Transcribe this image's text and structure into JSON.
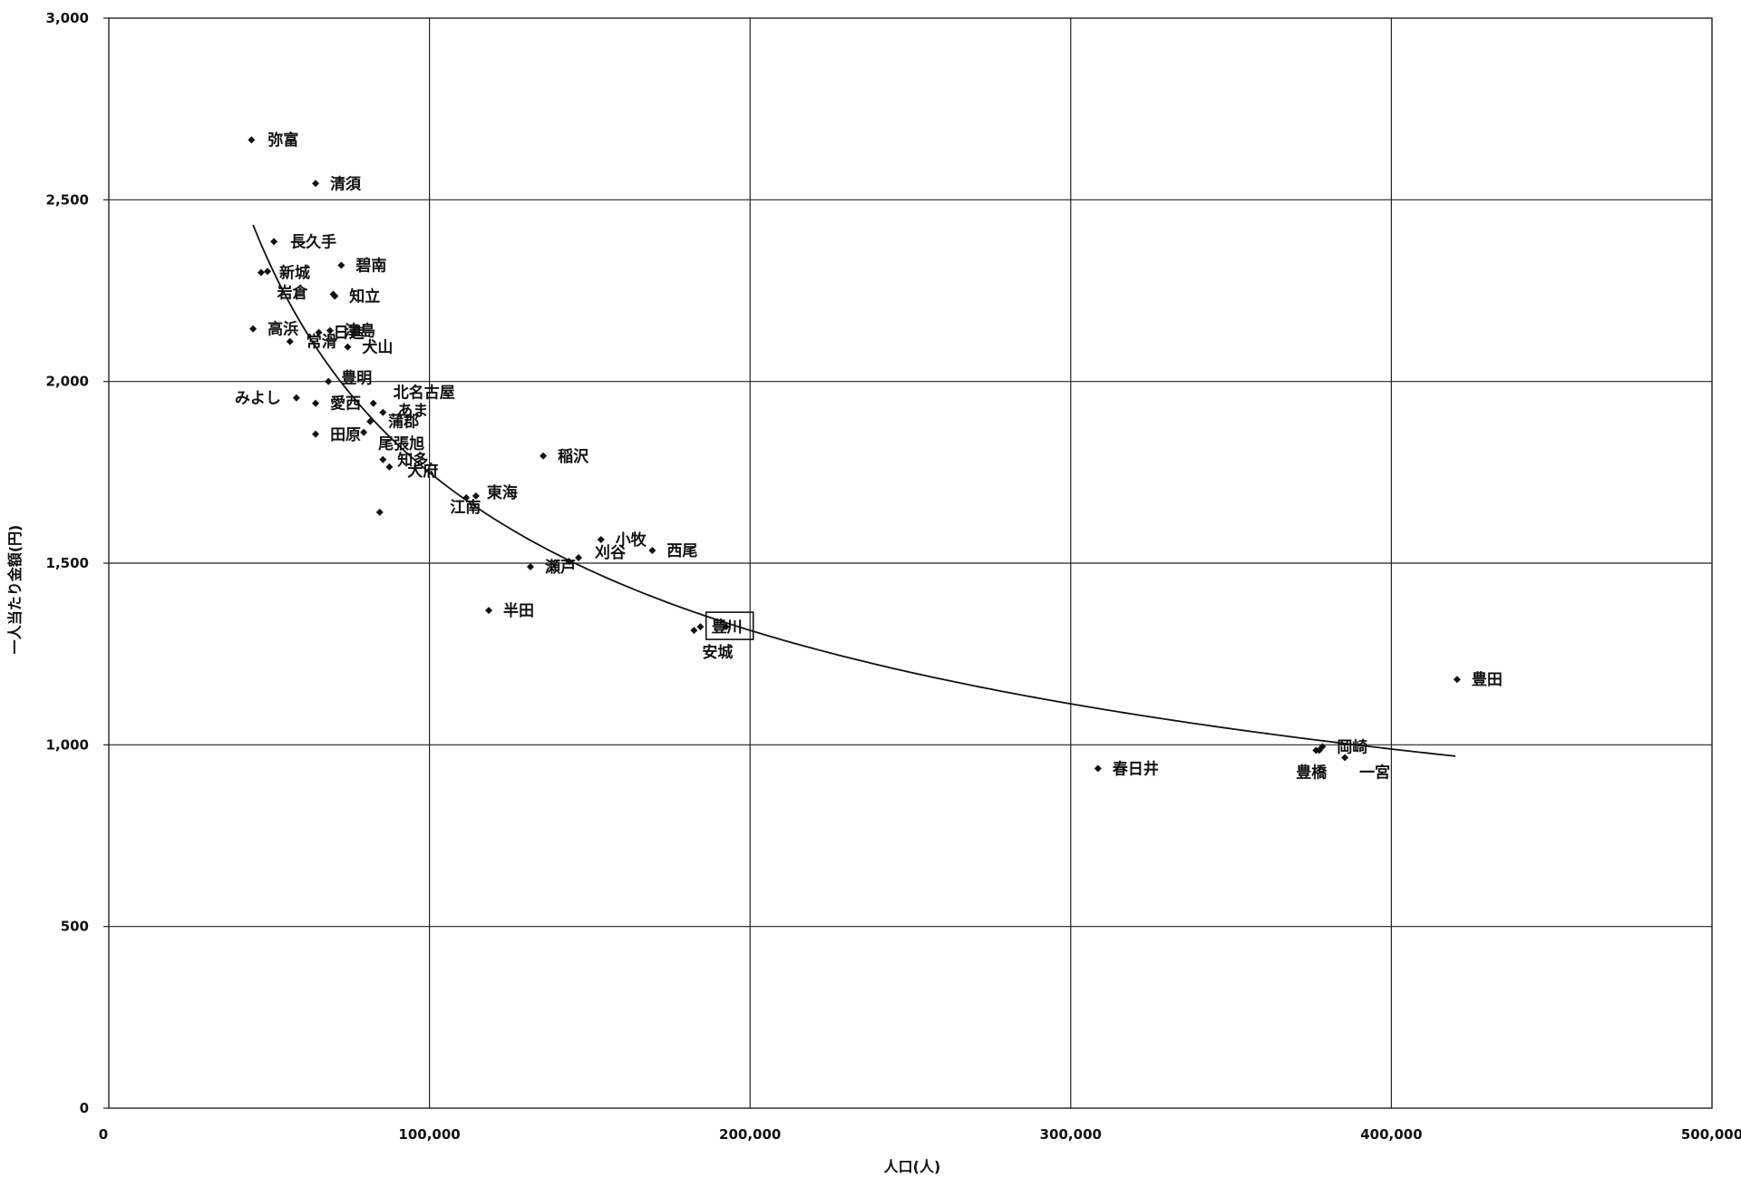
{
  "chart_data": {
    "type": "scatter",
    "title": "",
    "xlabel": "人口(人)",
    "ylabel": "一人当たり金額(円)",
    "xlim": [
      0,
      500000
    ],
    "ylim": [
      0,
      3000
    ],
    "x_ticks": [
      0,
      100000,
      200000,
      300000,
      400000,
      500000
    ],
    "x_tick_labels": [
      "0",
      "100,000",
      "200,000",
      "300,000",
      "400,000",
      "500,000"
    ],
    "y_ticks": [
      0,
      500,
      1000,
      1500,
      2000,
      2500,
      3000
    ],
    "y_tick_labels": [
      "0",
      "500",
      "1,000",
      "1,500",
      "2,000",
      "2,500",
      "3,000"
    ],
    "grid": true,
    "legend": "none",
    "trendline": {
      "type": "power",
      "x_range": [
        45000,
        420000
      ]
    },
    "highlighted": "豊川",
    "points": [
      {
        "label": "弥富",
        "x": 44500,
        "y": 2665,
        "dx": 18,
        "dy": 6
      },
      {
        "label": "清須",
        "x": 64500,
        "y": 2545,
        "dx": 16,
        "dy": 6
      },
      {
        "label": "長久手",
        "x": 51500,
        "y": 2385,
        "dx": 18,
        "dy": 6
      },
      {
        "label": "新城",
        "x": 47500,
        "y": 2300,
        "dx": 20,
        "dy": 6
      },
      {
        "label": "",
        "x": 49500,
        "y": 2303,
        "dx": 0,
        "dy": 0
      },
      {
        "label": "碧南",
        "x": 72500,
        "y": 2320,
        "dx": 16,
        "dy": 6
      },
      {
        "label": "岩倉",
        "x": 70000,
        "y": 2240,
        "dx": -62,
        "dy": 4
      },
      {
        "label": "知立",
        "x": 70500,
        "y": 2235,
        "dx": 16,
        "dy": 6
      },
      {
        "label": "高浜",
        "x": 45000,
        "y": 2145,
        "dx": 16,
        "dy": 6
      },
      {
        "label": "日進",
        "x": 65500,
        "y": 2135,
        "dx": 16,
        "dy": 6
      },
      {
        "label": "津島",
        "x": 69000,
        "y": 2140,
        "dx": 16,
        "dy": 6
      },
      {
        "label": "常滑",
        "x": 56500,
        "y": 2110,
        "dx": 18,
        "dy": 6
      },
      {
        "label": "犬山",
        "x": 74500,
        "y": 2095,
        "dx": 16,
        "dy": 6
      },
      {
        "label": "豊明",
        "x": 68500,
        "y": 2000,
        "dx": 14,
        "dy": 2
      },
      {
        "label": "みよし",
        "x": 58500,
        "y": 1955,
        "dx": -68,
        "dy": 6
      },
      {
        "label": "愛西",
        "x": 64500,
        "y": 1940,
        "dx": 16,
        "dy": 6
      },
      {
        "label": "北名古屋",
        "x": 82500,
        "y": 1940,
        "dx": 22,
        "dy": -6
      },
      {
        "label": "あま",
        "x": 85500,
        "y": 1915,
        "dx": 16,
        "dy": 4
      },
      {
        "label": "蒲郡",
        "x": 81500,
        "y": 1890,
        "dx": 20,
        "dy": 6
      },
      {
        "label": "田原",
        "x": 64500,
        "y": 1855,
        "dx": 16,
        "dy": 6
      },
      {
        "label": "尾張旭",
        "x": 79500,
        "y": 1860,
        "dx": 16,
        "dy": 18
      },
      {
        "label": "知多",
        "x": 85500,
        "y": 1785,
        "dx": 16,
        "dy": 6
      },
      {
        "label": "大府",
        "x": 87500,
        "y": 1765,
        "dx": 20,
        "dy": 10
      },
      {
        "label": "稲沢",
        "x": 135500,
        "y": 1795,
        "dx": 16,
        "dy": 6
      },
      {
        "label": "東海",
        "x": 114500,
        "y": 1685,
        "dx": 12,
        "dy": 2
      },
      {
        "label": "江南",
        "x": 111500,
        "y": 1680,
        "dx": -18,
        "dy": 16
      },
      {
        "label": "",
        "x": 84500,
        "y": 1640,
        "dx": 0,
        "dy": 0
      },
      {
        "label": "小牧",
        "x": 153500,
        "y": 1565,
        "dx": 16,
        "dy": 6
      },
      {
        "label": "西尾",
        "x": 169500,
        "y": 1535,
        "dx": 16,
        "dy": 6
      },
      {
        "label": "刈谷",
        "x": 146500,
        "y": 1515,
        "dx": 18,
        "dy": 0
      },
      {
        "label": "",
        "x": 143500,
        "y": 1505,
        "dx": 0,
        "dy": 0
      },
      {
        "label": "瀬戸",
        "x": 131500,
        "y": 1490,
        "dx": 16,
        "dy": 6
      },
      {
        "label": "半田",
        "x": 118500,
        "y": 1370,
        "dx": 16,
        "dy": 6
      },
      {
        "label": "安城",
        "x": 184500,
        "y": 1325,
        "dx": 2,
        "dy": 34
      },
      {
        "label": "",
        "x": 182500,
        "y": 1315,
        "dx": 0,
        "dy": 0
      },
      {
        "label": "豊川",
        "x": 192500,
        "y": 1325,
        "dx": -16,
        "dy": 6
      },
      {
        "label": "豊田",
        "x": 420500,
        "y": 1180,
        "dx": 16,
        "dy": 6
      },
      {
        "label": "岡崎",
        "x": 378500,
        "y": 995,
        "dx": 16,
        "dy": 6
      },
      {
        "label": "",
        "x": 377500,
        "y": 985,
        "dx": 0,
        "dy": 0
      },
      {
        "label": "豊橋",
        "x": 376500,
        "y": 985,
        "dx": -22,
        "dy": 30
      },
      {
        "label": "一宮",
        "x": 385500,
        "y": 965,
        "dx": 16,
        "dy": 22
      },
      {
        "label": "春日井",
        "x": 308500,
        "y": 935,
        "dx": 16,
        "dy": 6
      }
    ]
  }
}
